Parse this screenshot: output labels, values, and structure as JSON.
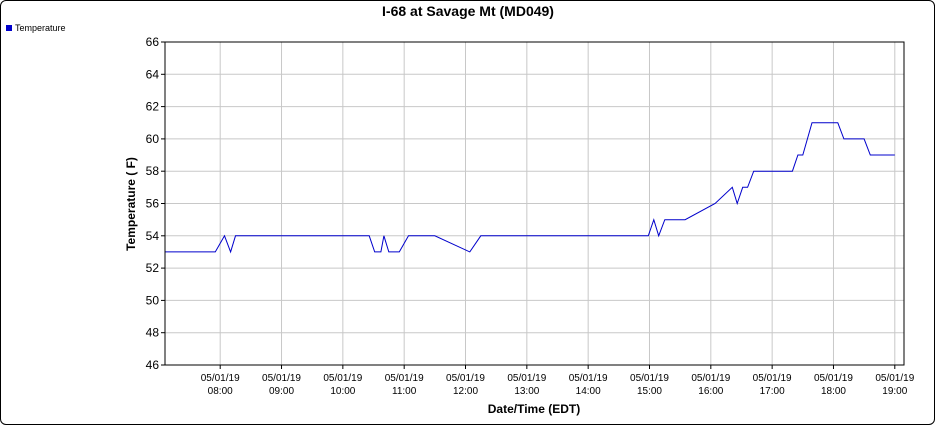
{
  "chart_data": {
    "type": "line",
    "title": "I-68 at Savage Mt (MD049)",
    "xlabel": "Date/Time (EDT)",
    "ylabel": "Temperature ( F)",
    "ylim": [
      46,
      66
    ],
    "yticks": [
      46,
      48,
      50,
      52,
      54,
      56,
      58,
      60,
      62,
      64,
      66
    ],
    "xlim_hours": [
      7.1,
      19.15
    ],
    "xticks": [
      {
        "hour": 8,
        "date": "05/01/19",
        "time": "08:00"
      },
      {
        "hour": 9,
        "date": "05/01/19",
        "time": "09:00"
      },
      {
        "hour": 10,
        "date": "05/01/19",
        "time": "10:00"
      },
      {
        "hour": 11,
        "date": "05/01/19",
        "time": "11:00"
      },
      {
        "hour": 12,
        "date": "05/01/19",
        "time": "12:00"
      },
      {
        "hour": 13,
        "date": "05/01/19",
        "time": "13:00"
      },
      {
        "hour": 14,
        "date": "05/01/19",
        "time": "14:00"
      },
      {
        "hour": 15,
        "date": "05/01/19",
        "time": "15:00"
      },
      {
        "hour": 16,
        "date": "05/01/19",
        "time": "16:00"
      },
      {
        "hour": 17,
        "date": "05/01/19",
        "time": "17:00"
      },
      {
        "hour": 18,
        "date": "05/01/19",
        "time": "18:00"
      },
      {
        "hour": 19,
        "date": "05/01/19",
        "time": "19:00"
      }
    ],
    "grid": true,
    "legend_position": "top-left",
    "series": [
      {
        "name": "Temperature",
        "color": "#0000cc",
        "points": [
          [
            7.1,
            53
          ],
          [
            7.92,
            53
          ],
          [
            8.07,
            54
          ],
          [
            8.17,
            53
          ],
          [
            8.25,
            54
          ],
          [
            10.43,
            54
          ],
          [
            10.52,
            53
          ],
          [
            10.62,
            53
          ],
          [
            10.67,
            54
          ],
          [
            10.75,
            53
          ],
          [
            10.92,
            53
          ],
          [
            11.07,
            54
          ],
          [
            11.5,
            54
          ],
          [
            12.07,
            53
          ],
          [
            12.25,
            54
          ],
          [
            14.98,
            54
          ],
          [
            15.07,
            55
          ],
          [
            15.15,
            54
          ],
          [
            15.25,
            55
          ],
          [
            15.58,
            55
          ],
          [
            16.07,
            56
          ],
          [
            16.35,
            57
          ],
          [
            16.43,
            56
          ],
          [
            16.52,
            57
          ],
          [
            16.6,
            57
          ],
          [
            16.7,
            58
          ],
          [
            17.33,
            58
          ],
          [
            17.42,
            59
          ],
          [
            17.5,
            59
          ],
          [
            17.65,
            61
          ],
          [
            18.07,
            61
          ],
          [
            18.17,
            60
          ],
          [
            18.5,
            60
          ],
          [
            18.6,
            59
          ],
          [
            19.0,
            59
          ]
        ]
      }
    ]
  }
}
